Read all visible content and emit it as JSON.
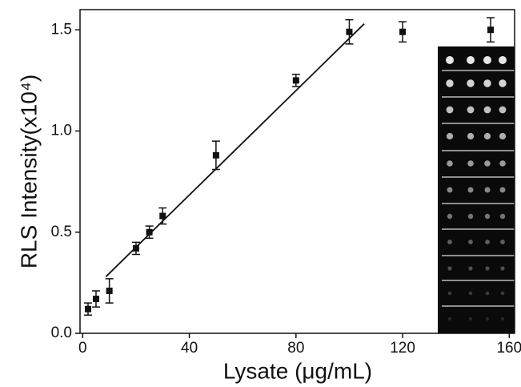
{
  "chart_data": {
    "type": "scatter",
    "xlabel": "Lysate (μg/mL)",
    "ylabel": "RLS Intensity(x10⁴)",
    "xlim": [
      -1,
      162
    ],
    "ylim": [
      0,
      1.6
    ],
    "xticks": [
      0,
      40,
      80,
      120,
      160
    ],
    "yticks": [
      {
        "value": 0,
        "label": "0.0"
      },
      {
        "value": 0.5,
        "label": "0.5"
      },
      {
        "value": 1,
        "label": "1.0"
      },
      {
        "value": 1.5,
        "label": "1.5"
      }
    ],
    "color": "#111111",
    "series": [
      {
        "x": [
          2,
          5,
          10,
          20,
          25,
          30,
          50,
          80,
          100,
          120,
          153
        ],
        "values": [
          0.12,
          0.17,
          0.21,
          0.42,
          0.5,
          0.58,
          0.88,
          1.25,
          1.49,
          1.49,
          1.5
        ],
        "errors": [
          0.03,
          0.04,
          0.06,
          0.03,
          0.03,
          0.04,
          0.07,
          0.03,
          0.06,
          0.05,
          0.06
        ]
      }
    ],
    "fit": {
      "x": [
        8.7,
        105.6
      ],
      "y": [
        0.28,
        1.53
      ]
    }
  }
}
